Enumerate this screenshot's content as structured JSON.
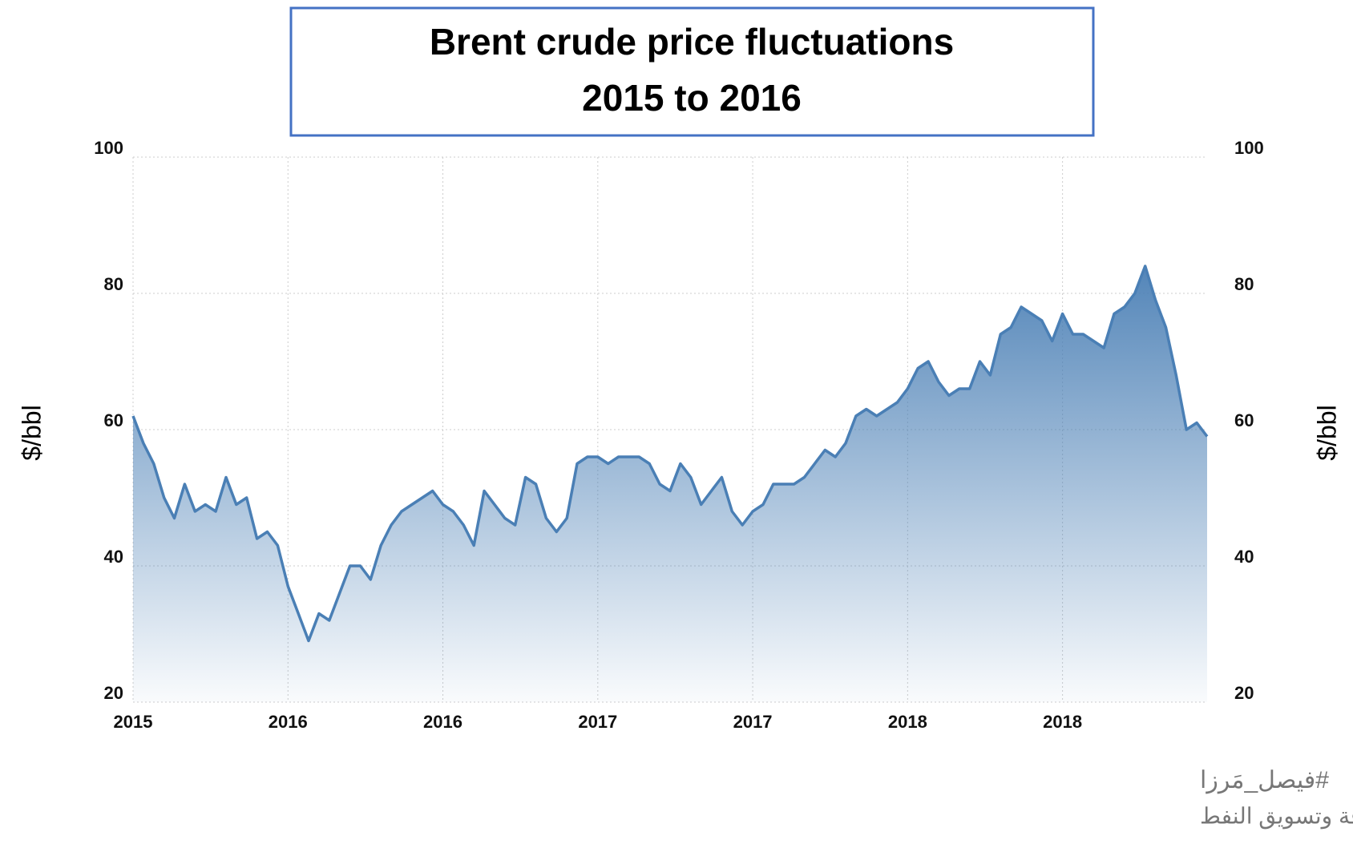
{
  "chart_data": {
    "type": "area",
    "title": [
      "Brent crude price fluctuations",
      "2015 to 2016"
    ],
    "ylabel": "$/bbl",
    "values": [
      62,
      58,
      55,
      50,
      47,
      52,
      48,
      49,
      48,
      53,
      49,
      50,
      44,
      45,
      43,
      37,
      33,
      29,
      33,
      32,
      36,
      40,
      40,
      38,
      43,
      46,
      48,
      49,
      50,
      51,
      49,
      48,
      46,
      43,
      51,
      49,
      47,
      46,
      53,
      52,
      47,
      45,
      47,
      55,
      56,
      56,
      55,
      56,
      56,
      56,
      55,
      52,
      51,
      55,
      53,
      49,
      51,
      53,
      48,
      46,
      48,
      49,
      52,
      52,
      52,
      53,
      55,
      57,
      56,
      58,
      62,
      63,
      62,
      63,
      64,
      66,
      69,
      70,
      67,
      65,
      66,
      66,
      70,
      68,
      74,
      75,
      78,
      77,
      76,
      73,
      77,
      74,
      74,
      73,
      72,
      77,
      78,
      80,
      84,
      79,
      75,
      68,
      60,
      61,
      59
    ],
    "color": "#4a7fb5",
    "xticks": [
      {
        "value": 0,
        "label": "2015"
      },
      {
        "value": 15,
        "label": "2016"
      },
      {
        "value": 30,
        "label": "2016"
      },
      {
        "value": 45,
        "label": "2017"
      },
      {
        "value": 60,
        "label": "2017"
      },
      {
        "value": 75,
        "label": "2018"
      },
      {
        "value": 90,
        "label": "2018"
      }
    ],
    "xlim": [
      0,
      104
    ],
    "ylim": [
      20,
      100
    ],
    "yticks": [
      20,
      40,
      60,
      80,
      100
    ],
    "grid": true,
    "annotations": [
      "#فيصل_مَرزا",
      "مستشار في شؤون الطاقة وتسويق النفط"
    ]
  }
}
